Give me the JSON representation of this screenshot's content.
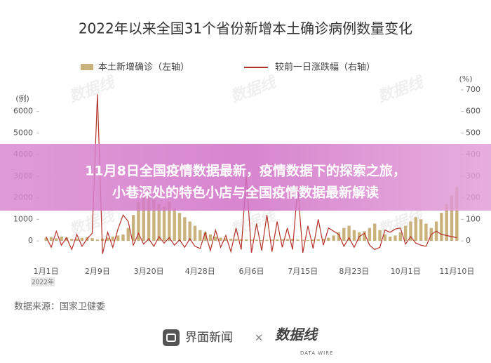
{
  "chart_data": {
    "type": "combo",
    "title": "2022年以来全国31个省份新增本土确诊病例数量变化",
    "y_label": "(例)",
    "y2_label": "(%)",
    "x_year_label": "2022年",
    "categories": [
      "1月1日",
      null,
      null,
      null,
      null,
      null,
      null,
      null,
      null,
      null,
      "2月9日",
      null,
      null,
      null,
      null,
      null,
      null,
      null,
      null,
      null,
      "3月20日",
      null,
      null,
      null,
      null,
      null,
      null,
      null,
      null,
      null,
      "4月28日",
      null,
      null,
      null,
      null,
      null,
      null,
      null,
      null,
      null,
      "6月6日",
      null,
      null,
      null,
      null,
      null,
      null,
      null,
      null,
      null,
      "7月15日",
      null,
      null,
      null,
      null,
      null,
      null,
      null,
      null,
      null,
      "8月23日",
      null,
      null,
      null,
      null,
      null,
      null,
      null,
      null,
      null,
      "10月1日",
      null,
      null,
      null,
      null,
      null,
      null,
      null,
      null,
      null,
      "11月10日"
    ],
    "series": [
      {
        "name": "本土新增确诊（左轴）",
        "type": "bar",
        "color": "#c9b27c",
        "values": [
          150,
          180,
          120,
          200,
          160,
          90,
          110,
          140,
          170,
          130,
          60,
          110,
          150,
          200,
          250,
          300,
          600,
          1200,
          1800,
          2100,
          2400,
          1900,
          1700,
          1600,
          1800,
          1500,
          1300,
          1100,
          900,
          700,
          500,
          400,
          300,
          200,
          150,
          120,
          100,
          90,
          80,
          70,
          60,
          50,
          40,
          50,
          60,
          70,
          80,
          90,
          100,
          60,
          50,
          40,
          60,
          80,
          100,
          150,
          250,
          400,
          600,
          700,
          500,
          400,
          450,
          600,
          800,
          500,
          300,
          200,
          250,
          400,
          700,
          900,
          1100,
          1000,
          800,
          600,
          900,
          1300,
          1700,
          2100,
          2500
        ]
      },
      {
        "name": "较前一日涨跌幅（右轴）",
        "type": "line",
        "axis": "y2",
        "color": "#b5302a",
        "values": [
          20,
          -30,
          45,
          -20,
          15,
          -40,
          30,
          -25,
          10,
          35,
          680,
          -60,
          40,
          -30,
          55,
          120,
          90,
          -20,
          35,
          -15,
          10,
          -25,
          20,
          -10,
          15,
          -20,
          5,
          -30,
          10,
          -25,
          -35,
          40,
          -45,
          50,
          -30,
          25,
          -50,
          60,
          -40,
          300,
          -55,
          80,
          -45,
          120,
          -50,
          90,
          -30,
          60,
          -40,
          250,
          -55,
          70,
          -35,
          100,
          -20,
          60,
          45,
          30,
          -25,
          15,
          -30,
          20,
          35,
          -20,
          -40,
          -30,
          50,
          40,
          55,
          60,
          -15,
          20,
          -10,
          -20,
          -25,
          30,
          45,
          30,
          25,
          20,
          15
        ]
      }
    ],
    "ylim": [
      -550,
      7000
    ],
    "yticks": [
      0,
      1000,
      2000,
      3000,
      4000,
      5000,
      6000
    ],
    "y2lim": [
      -55,
      700
    ],
    "y2ticks": [
      0,
      100,
      200,
      300,
      400,
      500,
      600,
      700
    ]
  },
  "banner": {
    "lines": [
      "11月8日全国疫情数据最新，疫情数据下的探索之旅，",
      "小巷深处的特色小店与全国疫情数据最新解读"
    ]
  },
  "source": "数据来源：国家卫健委",
  "watermark": "数据线",
  "footer": {
    "brand1": "界面新闻",
    "separator": "×",
    "brand2": "数据线",
    "brand2_sub": "DATA WIRE"
  }
}
